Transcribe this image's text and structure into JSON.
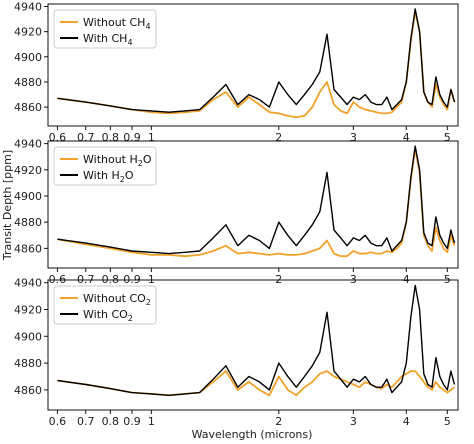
{
  "figure": {
    "ylabel": "Transit Depth [ppm]",
    "xlabel": "Wavelength (microns)"
  },
  "chart_data": [
    {
      "type": "line",
      "xscale": "log",
      "xlim": [
        0.57,
        5.3
      ],
      "ylim": [
        4845,
        4942
      ],
      "x_ticks": [
        0.6,
        0.7,
        0.8,
        0.9,
        1,
        2,
        3,
        4,
        5
      ],
      "x_tick_labels": [
        "0.6",
        "0.7",
        "0.8",
        "0.9",
        "1",
        "2",
        "3",
        "4",
        "5"
      ],
      "y_ticks": [
        4860,
        4880,
        4900,
        4920,
        4940
      ],
      "legend": "top-left",
      "series": [
        {
          "name": "Without CH4",
          "label_main": "Without CH",
          "label_sub": "4",
          "color": "#f2a12a",
          "x": [
            0.6,
            0.7,
            0.8,
            0.9,
            1.0,
            1.1,
            1.2,
            1.3,
            1.4,
            1.5,
            1.6,
            1.7,
            1.8,
            1.9,
            2.0,
            2.1,
            2.2,
            2.3,
            2.4,
            2.5,
            2.6,
            2.7,
            2.8,
            2.9,
            3.0,
            3.1,
            3.2,
            3.3,
            3.4,
            3.5,
            3.6,
            3.7,
            3.8,
            3.9,
            4.0,
            4.1,
            4.2,
            4.3,
            4.4,
            4.5,
            4.6,
            4.7,
            4.8,
            4.9,
            5.0,
            5.1,
            5.2
          ],
          "y": [
            4867,
            4864,
            4861,
            4858,
            4856,
            4855,
            4856,
            4857,
            4866,
            4872,
            4860,
            4868,
            4862,
            4856,
            4855,
            4853,
            4852,
            4853,
            4860,
            4872,
            4880,
            4862,
            4857,
            4855,
            4864,
            4860,
            4858,
            4857,
            4856,
            4855,
            4855,
            4856,
            4860,
            4864,
            4880,
            4912,
            4936,
            4920,
            4872,
            4864,
            4860,
            4878,
            4868,
            4862,
            4858,
            4874,
            4864
          ]
        },
        {
          "name": "With CH4",
          "label_main": "With CH",
          "label_sub": "4",
          "color": "#000000",
          "x": [
            0.6,
            0.7,
            0.8,
            0.9,
            1.0,
            1.1,
            1.2,
            1.3,
            1.4,
            1.5,
            1.6,
            1.7,
            1.8,
            1.9,
            2.0,
            2.1,
            2.2,
            2.3,
            2.4,
            2.5,
            2.6,
            2.7,
            2.8,
            2.9,
            3.0,
            3.1,
            3.2,
            3.3,
            3.4,
            3.5,
            3.6,
            3.7,
            3.8,
            3.9,
            4.0,
            4.1,
            4.2,
            4.3,
            4.4,
            4.5,
            4.6,
            4.7,
            4.8,
            4.9,
            5.0,
            5.1,
            5.2
          ],
          "y": [
            4867,
            4864,
            4861,
            4858,
            4857,
            4856,
            4857,
            4858,
            4868,
            4878,
            4862,
            4870,
            4866,
            4860,
            4880,
            4870,
            4862,
            4870,
            4878,
            4888,
            4918,
            4874,
            4868,
            4862,
            4868,
            4866,
            4870,
            4864,
            4862,
            4862,
            4868,
            4858,
            4862,
            4866,
            4880,
            4914,
            4938,
            4920,
            4872,
            4864,
            4862,
            4884,
            4870,
            4864,
            4860,
            4874,
            4864
          ]
        }
      ]
    },
    {
      "type": "line",
      "xscale": "log",
      "xlim": [
        0.57,
        5.3
      ],
      "ylim": [
        4845,
        4942
      ],
      "x_ticks": [
        0.6,
        0.7,
        0.8,
        0.9,
        1,
        2,
        3,
        4,
        5
      ],
      "x_tick_labels": [
        "0.6",
        "0.7",
        "0.8",
        "0.9",
        "1",
        "2",
        "3",
        "4",
        "5"
      ],
      "y_ticks": [
        4860,
        4880,
        4900,
        4920,
        4940
      ],
      "legend": "top-left",
      "series": [
        {
          "name": "Without H2O",
          "label_main": "Without H",
          "label_sub": "2",
          "label_after": "O",
          "color": "#f2a12a",
          "x": [
            0.6,
            0.7,
            0.8,
            0.9,
            1.0,
            1.1,
            1.2,
            1.3,
            1.4,
            1.5,
            1.6,
            1.7,
            1.8,
            1.9,
            2.0,
            2.1,
            2.2,
            2.3,
            2.4,
            2.5,
            2.6,
            2.7,
            2.8,
            2.9,
            3.0,
            3.1,
            3.2,
            3.3,
            3.4,
            3.5,
            3.6,
            3.7,
            3.8,
            3.9,
            4.0,
            4.1,
            4.2,
            4.3,
            4.4,
            4.5,
            4.6,
            4.7,
            4.8,
            4.9,
            5.0,
            5.1,
            5.2
          ],
          "y": [
            4867,
            4863,
            4860,
            4857,
            4855,
            4855,
            4854,
            4855,
            4858,
            4862,
            4856,
            4857,
            4856,
            4855,
            4856,
            4855,
            4855,
            4856,
            4858,
            4860,
            4866,
            4856,
            4854,
            4854,
            4858,
            4856,
            4856,
            4857,
            4856,
            4856,
            4858,
            4857,
            4860,
            4864,
            4880,
            4912,
            4936,
            4918,
            4870,
            4862,
            4858,
            4876,
            4866,
            4860,
            4857,
            4870,
            4862
          ]
        },
        {
          "name": "With H2O",
          "label_main": "With H",
          "label_sub": "2",
          "label_after": "O",
          "color": "#000000",
          "x": [
            0.6,
            0.7,
            0.8,
            0.9,
            1.0,
            1.1,
            1.2,
            1.3,
            1.4,
            1.5,
            1.6,
            1.7,
            1.8,
            1.9,
            2.0,
            2.1,
            2.2,
            2.3,
            2.4,
            2.5,
            2.6,
            2.7,
            2.8,
            2.9,
            3.0,
            3.1,
            3.2,
            3.3,
            3.4,
            3.5,
            3.6,
            3.7,
            3.8,
            3.9,
            4.0,
            4.1,
            4.2,
            4.3,
            4.4,
            4.5,
            4.6,
            4.7,
            4.8,
            4.9,
            5.0,
            5.1,
            5.2
          ],
          "y": [
            4867,
            4864,
            4861,
            4858,
            4857,
            4856,
            4857,
            4858,
            4868,
            4878,
            4862,
            4870,
            4866,
            4860,
            4880,
            4870,
            4862,
            4870,
            4878,
            4888,
            4918,
            4874,
            4868,
            4862,
            4868,
            4866,
            4870,
            4864,
            4862,
            4862,
            4868,
            4858,
            4862,
            4866,
            4880,
            4914,
            4938,
            4920,
            4872,
            4864,
            4862,
            4884,
            4870,
            4864,
            4860,
            4874,
            4864
          ]
        }
      ]
    },
    {
      "type": "line",
      "xscale": "log",
      "xlim": [
        0.57,
        5.3
      ],
      "ylim": [
        4845,
        4942
      ],
      "x_ticks": [
        0.6,
        0.7,
        0.8,
        0.9,
        1,
        2,
        3,
        4,
        5
      ],
      "x_tick_labels": [
        "0.6",
        "0.7",
        "0.8",
        "0.9",
        "1",
        "2",
        "3",
        "4",
        "5"
      ],
      "y_ticks": [
        4860,
        4880,
        4900,
        4920,
        4940
      ],
      "legend": "top-left",
      "series": [
        {
          "name": "Without CO2",
          "label_main": "Without CO",
          "label_sub": "2",
          "color": "#f2a12a",
          "x": [
            0.6,
            0.7,
            0.8,
            0.9,
            1.0,
            1.1,
            1.2,
            1.3,
            1.4,
            1.5,
            1.6,
            1.7,
            1.8,
            1.9,
            2.0,
            2.1,
            2.2,
            2.3,
            2.4,
            2.5,
            2.6,
            2.7,
            2.8,
            2.9,
            3.0,
            3.1,
            3.2,
            3.3,
            3.4,
            3.5,
            3.6,
            3.7,
            3.8,
            3.9,
            4.0,
            4.1,
            4.2,
            4.3,
            4.4,
            4.5,
            4.6,
            4.7,
            4.8,
            4.9,
            5.0,
            5.1,
            5.2
          ],
          "y": [
            4867,
            4864,
            4861,
            4858,
            4857,
            4856,
            4857,
            4858,
            4866,
            4874,
            4860,
            4866,
            4860,
            4856,
            4870,
            4860,
            4856,
            4862,
            4866,
            4872,
            4874,
            4870,
            4868,
            4866,
            4864,
            4862,
            4866,
            4864,
            4862,
            4861,
            4864,
            4862,
            4866,
            4870,
            4872,
            4874,
            4874,
            4870,
            4866,
            4862,
            4860,
            4866,
            4862,
            4860,
            4858,
            4860,
            4862
          ]
        },
        {
          "name": "With CO2",
          "label_main": "With CO",
          "label_sub": "2",
          "color": "#000000",
          "x": [
            0.6,
            0.7,
            0.8,
            0.9,
            1.0,
            1.1,
            1.2,
            1.3,
            1.4,
            1.5,
            1.6,
            1.7,
            1.8,
            1.9,
            2.0,
            2.1,
            2.2,
            2.3,
            2.4,
            2.5,
            2.6,
            2.7,
            2.8,
            2.9,
            3.0,
            3.1,
            3.2,
            3.3,
            3.4,
            3.5,
            3.6,
            3.7,
            3.8,
            3.9,
            4.0,
            4.1,
            4.2,
            4.3,
            4.4,
            4.5,
            4.6,
            4.7,
            4.8,
            4.9,
            5.0,
            5.1,
            5.2
          ],
          "y": [
            4867,
            4864,
            4861,
            4858,
            4857,
            4856,
            4857,
            4858,
            4868,
            4878,
            4862,
            4870,
            4866,
            4860,
            4880,
            4870,
            4862,
            4870,
            4878,
            4888,
            4918,
            4874,
            4868,
            4862,
            4868,
            4866,
            4870,
            4864,
            4862,
            4862,
            4868,
            4858,
            4862,
            4866,
            4880,
            4914,
            4938,
            4920,
            4872,
            4864,
            4862,
            4884,
            4870,
            4864,
            4860,
            4874,
            4864
          ]
        }
      ]
    }
  ]
}
